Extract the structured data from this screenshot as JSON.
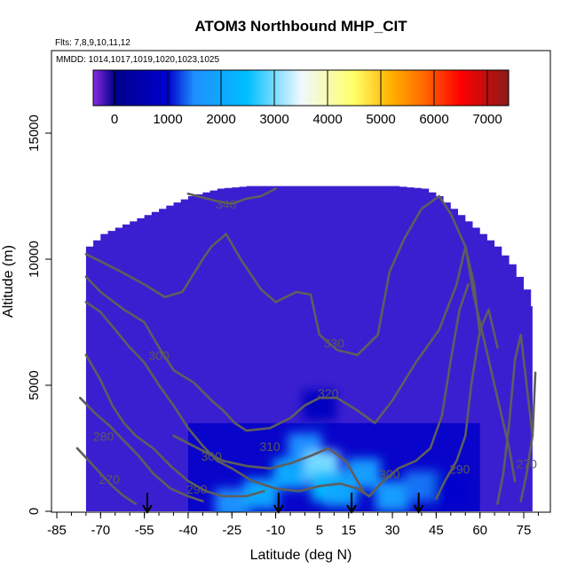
{
  "chart_data": {
    "type": "heatmap",
    "title": "ATOM3 Northbound MHP_CIT",
    "subtitle_flights": "Flts: 7,8,9,10,11,12",
    "subtitle_dates": "MMDD: 1014,1017,1019,1020,1023,1025",
    "xlabel": "Latitude (deg N)",
    "ylabel": "Altitude (m)",
    "xlim": [
      -87,
      87
    ],
    "ylim": [
      0,
      17000
    ],
    "x_ticks": [
      -85,
      -70,
      -55,
      -40,
      -25,
      -10,
      5,
      15,
      30,
      45,
      60,
      75
    ],
    "y_ticks": [
      0,
      5000,
      10000,
      15000
    ],
    "colorbar": {
      "ticks": [
        0,
        1000,
        2000,
        3000,
        4000,
        5000,
        6000,
        7000
      ],
      "range": [
        -400,
        7400
      ],
      "colors": [
        "#8a2be2",
        "#00008b",
        "#0000cd",
        "#1e90ff",
        "#00bfff",
        "#f0f8ff",
        "#ffff66",
        "#ffb000",
        "#ff6a00",
        "#ff0000",
        "#8b1a1a"
      ],
      "color_stops": [
        -400,
        0,
        1000,
        1500,
        2500,
        3500,
        4500,
        5200,
        5800,
        6500,
        7400
      ]
    },
    "curtain_top": [
      {
        "lat": -75,
        "alt": 10500
      },
      {
        "lat": -70,
        "alt": 11000
      },
      {
        "lat": -60,
        "alt": 11500
      },
      {
        "lat": -50,
        "alt": 12000
      },
      {
        "lat": -40,
        "alt": 12500
      },
      {
        "lat": -30,
        "alt": 12800
      },
      {
        "lat": -20,
        "alt": 12900
      },
      {
        "lat": -10,
        "alt": 12900
      },
      {
        "lat": 0,
        "alt": 12900
      },
      {
        "lat": 10,
        "alt": 12900
      },
      {
        "lat": 20,
        "alt": 12900
      },
      {
        "lat": 30,
        "alt": 12900
      },
      {
        "lat": 40,
        "alt": 12800
      },
      {
        "lat": 45,
        "alt": 12500
      },
      {
        "lat": 50,
        "alt": 12000
      },
      {
        "lat": 55,
        "alt": 11500
      },
      {
        "lat": 60,
        "alt": 11000
      },
      {
        "lat": 65,
        "alt": 10500
      },
      {
        "lat": 70,
        "alt": 9800
      },
      {
        "lat": 75,
        "alt": 8800
      },
      {
        "lat": 78,
        "alt": 8000
      }
    ],
    "high_values": [
      {
        "lat": -25,
        "alt": 300,
        "value": 1500
      },
      {
        "lat": -15,
        "alt": 700,
        "value": 2000
      },
      {
        "lat": -5,
        "alt": 1500,
        "value": 2000
      },
      {
        "lat": 0,
        "alt": 2500,
        "value": 1500
      },
      {
        "lat": 6,
        "alt": 1800,
        "value": 3000
      },
      {
        "lat": 8,
        "alt": 1000,
        "value": 2500
      },
      {
        "lat": 12,
        "alt": 800,
        "value": 2000
      },
      {
        "lat": 20,
        "alt": 1500,
        "value": 1800
      },
      {
        "lat": 30,
        "alt": 600,
        "value": 1800
      },
      {
        "lat": 40,
        "alt": 1000,
        "value": 1400
      },
      {
        "lat": 50,
        "alt": 800,
        "value": 1000
      },
      {
        "lat": 5,
        "alt": 4200,
        "value": 800
      }
    ],
    "contour_labels": [
      {
        "text": "340",
        "lat": -27,
        "alt": 12000
      },
      {
        "text": "330",
        "lat": 10,
        "alt": 6500
      },
      {
        "text": "320",
        "lat": 8,
        "alt": 4500
      },
      {
        "text": "310",
        "lat": -12,
        "alt": 2400
      },
      {
        "text": "300",
        "lat": -50,
        "alt": 6000
      },
      {
        "text": "300",
        "lat": -32,
        "alt": 2000
      },
      {
        "text": "300",
        "lat": 29,
        "alt": 1300
      },
      {
        "text": "290",
        "lat": -37,
        "alt": 700
      },
      {
        "text": "290",
        "lat": 53,
        "alt": 1500
      },
      {
        "text": "280",
        "lat": -69,
        "alt": 2800
      },
      {
        "text": "270",
        "lat": -67,
        "alt": 1100
      },
      {
        "text": "270",
        "lat": 76,
        "alt": 1700
      }
    ],
    "contours": [
      {
        "level": 340,
        "points": [
          [
            -40,
            12600
          ],
          [
            -30,
            12300
          ],
          [
            -25,
            12200
          ],
          [
            -20,
            12400
          ],
          [
            -15,
            12500
          ],
          [
            -10,
            12800
          ]
        ]
      },
      {
        "level": 330,
        "points": [
          [
            -75,
            10200
          ],
          [
            -68,
            9800
          ],
          [
            -63,
            9500
          ],
          [
            -55,
            9000
          ],
          [
            -48,
            8500
          ],
          [
            -42,
            8700
          ],
          [
            -35,
            10000
          ],
          [
            -32,
            10500
          ],
          [
            -27,
            11000
          ],
          [
            -22,
            10000
          ],
          [
            -15,
            8800
          ],
          [
            -10,
            8300
          ],
          [
            -3,
            8700
          ],
          [
            2,
            8600
          ],
          [
            5,
            7000
          ],
          [
            11,
            6400
          ],
          [
            18,
            6200
          ],
          [
            25,
            7000
          ],
          [
            29,
            9500
          ],
          [
            34,
            10800
          ],
          [
            40,
            12000
          ],
          [
            46,
            12500
          ],
          [
            50,
            11800
          ],
          [
            55,
            10500
          ],
          [
            58,
            8500
          ],
          [
            62,
            6500
          ],
          [
            66,
            4500
          ],
          [
            70,
            2500
          ],
          [
            72,
            1200
          ]
        ]
      },
      {
        "level": 320,
        "points": [
          [
            -75,
            9300
          ],
          [
            -70,
            8700
          ],
          [
            -62,
            8000
          ],
          [
            -55,
            7500
          ],
          [
            -50,
            6500
          ],
          [
            -45,
            5600
          ],
          [
            -38,
            5100
          ],
          [
            -32,
            4400
          ],
          [
            -28,
            4000
          ],
          [
            -24,
            3500
          ],
          [
            -20,
            3200
          ],
          [
            -12,
            3300
          ],
          [
            -5,
            3700
          ],
          [
            0,
            4200
          ],
          [
            5,
            4500
          ],
          [
            11,
            4500
          ],
          [
            18,
            4000
          ],
          [
            24,
            3500
          ],
          [
            30,
            4400
          ],
          [
            38,
            5900
          ],
          [
            46,
            7200
          ],
          [
            52,
            9000
          ],
          [
            55,
            10500
          ],
          [
            58,
            9000
          ],
          [
            60,
            7000
          ]
        ]
      },
      {
        "level": 310,
        "points": [
          [
            -45,
            3000
          ],
          [
            -35,
            2400
          ],
          [
            -28,
            2000
          ],
          [
            -20,
            1800
          ],
          [
            -12,
            1700
          ],
          [
            -5,
            1900
          ],
          [
            2,
            2200
          ],
          [
            8,
            2500
          ],
          [
            14,
            2000
          ],
          [
            18,
            1200
          ],
          [
            20,
            800
          ]
        ]
      },
      {
        "level": 300,
        "points": [
          [
            -75,
            8300
          ],
          [
            -70,
            7900
          ],
          [
            -65,
            7200
          ],
          [
            -60,
            6500
          ],
          [
            -55,
            5900
          ],
          [
            -50,
            5000
          ],
          [
            -45,
            4200
          ],
          [
            -40,
            3300
          ],
          [
            -35,
            2600
          ],
          [
            -30,
            2000
          ],
          [
            -25,
            1700
          ],
          [
            -18,
            1200
          ],
          [
            -10,
            900
          ],
          [
            -2,
            800
          ],
          [
            5,
            1000
          ],
          [
            12,
            1100
          ],
          [
            18,
            900
          ],
          [
            22,
            600
          ]
        ]
      },
      {
        "level": 300,
        "points": [
          [
            22,
            600
          ],
          [
            26,
            1100
          ],
          [
            32,
            1700
          ],
          [
            38,
            2000
          ],
          [
            43,
            2500
          ],
          [
            47,
            3800
          ],
          [
            50,
            6000
          ],
          [
            53,
            8000
          ],
          [
            56,
            9000
          ]
        ]
      },
      {
        "level": 290,
        "points": [
          [
            -75,
            6200
          ],
          [
            -70,
            5200
          ],
          [
            -66,
            4200
          ],
          [
            -62,
            3500
          ],
          [
            -58,
            3000
          ],
          [
            -52,
            2500
          ],
          [
            -46,
            1800
          ],
          [
            -40,
            1200
          ],
          [
            -34,
            800
          ],
          [
            -28,
            600
          ],
          [
            -20,
            600
          ],
          [
            -14,
            800
          ]
        ]
      },
      {
        "level": 290,
        "points": [
          [
            45,
            500
          ],
          [
            48,
            1200
          ],
          [
            52,
            2000
          ],
          [
            55,
            3000
          ],
          [
            57,
            5000
          ],
          [
            60,
            7200
          ],
          [
            63,
            8000
          ],
          [
            66,
            6500
          ]
        ]
      },
      {
        "level": 280,
        "points": [
          [
            -77,
            4500
          ],
          [
            -72,
            3900
          ],
          [
            -67,
            3400
          ],
          [
            -62,
            2800
          ],
          [
            -57,
            2200
          ],
          [
            -52,
            1500
          ],
          [
            -46,
            900
          ],
          [
            -40,
            600
          ],
          [
            -35,
            400
          ]
        ]
      },
      {
        "level": 280,
        "points": [
          [
            66,
            300
          ],
          [
            68,
            1500
          ],
          [
            70,
            3500
          ],
          [
            72,
            6000
          ],
          [
            74,
            7000
          ],
          [
            76,
            5000
          ],
          [
            78,
            3000
          ]
        ]
      },
      {
        "level": 270,
        "points": [
          [
            -78,
            2500
          ],
          [
            -74,
            2000
          ],
          [
            -70,
            1500
          ],
          [
            -66,
            1000
          ],
          [
            -62,
            600
          ],
          [
            -58,
            300
          ]
        ]
      },
      {
        "level": 270,
        "points": [
          [
            74,
            400
          ],
          [
            76,
            1500
          ],
          [
            78,
            3000
          ],
          [
            79,
            5500
          ]
        ]
      }
    ],
    "arrows_lat": [
      -54,
      -9,
      16,
      39
    ]
  }
}
